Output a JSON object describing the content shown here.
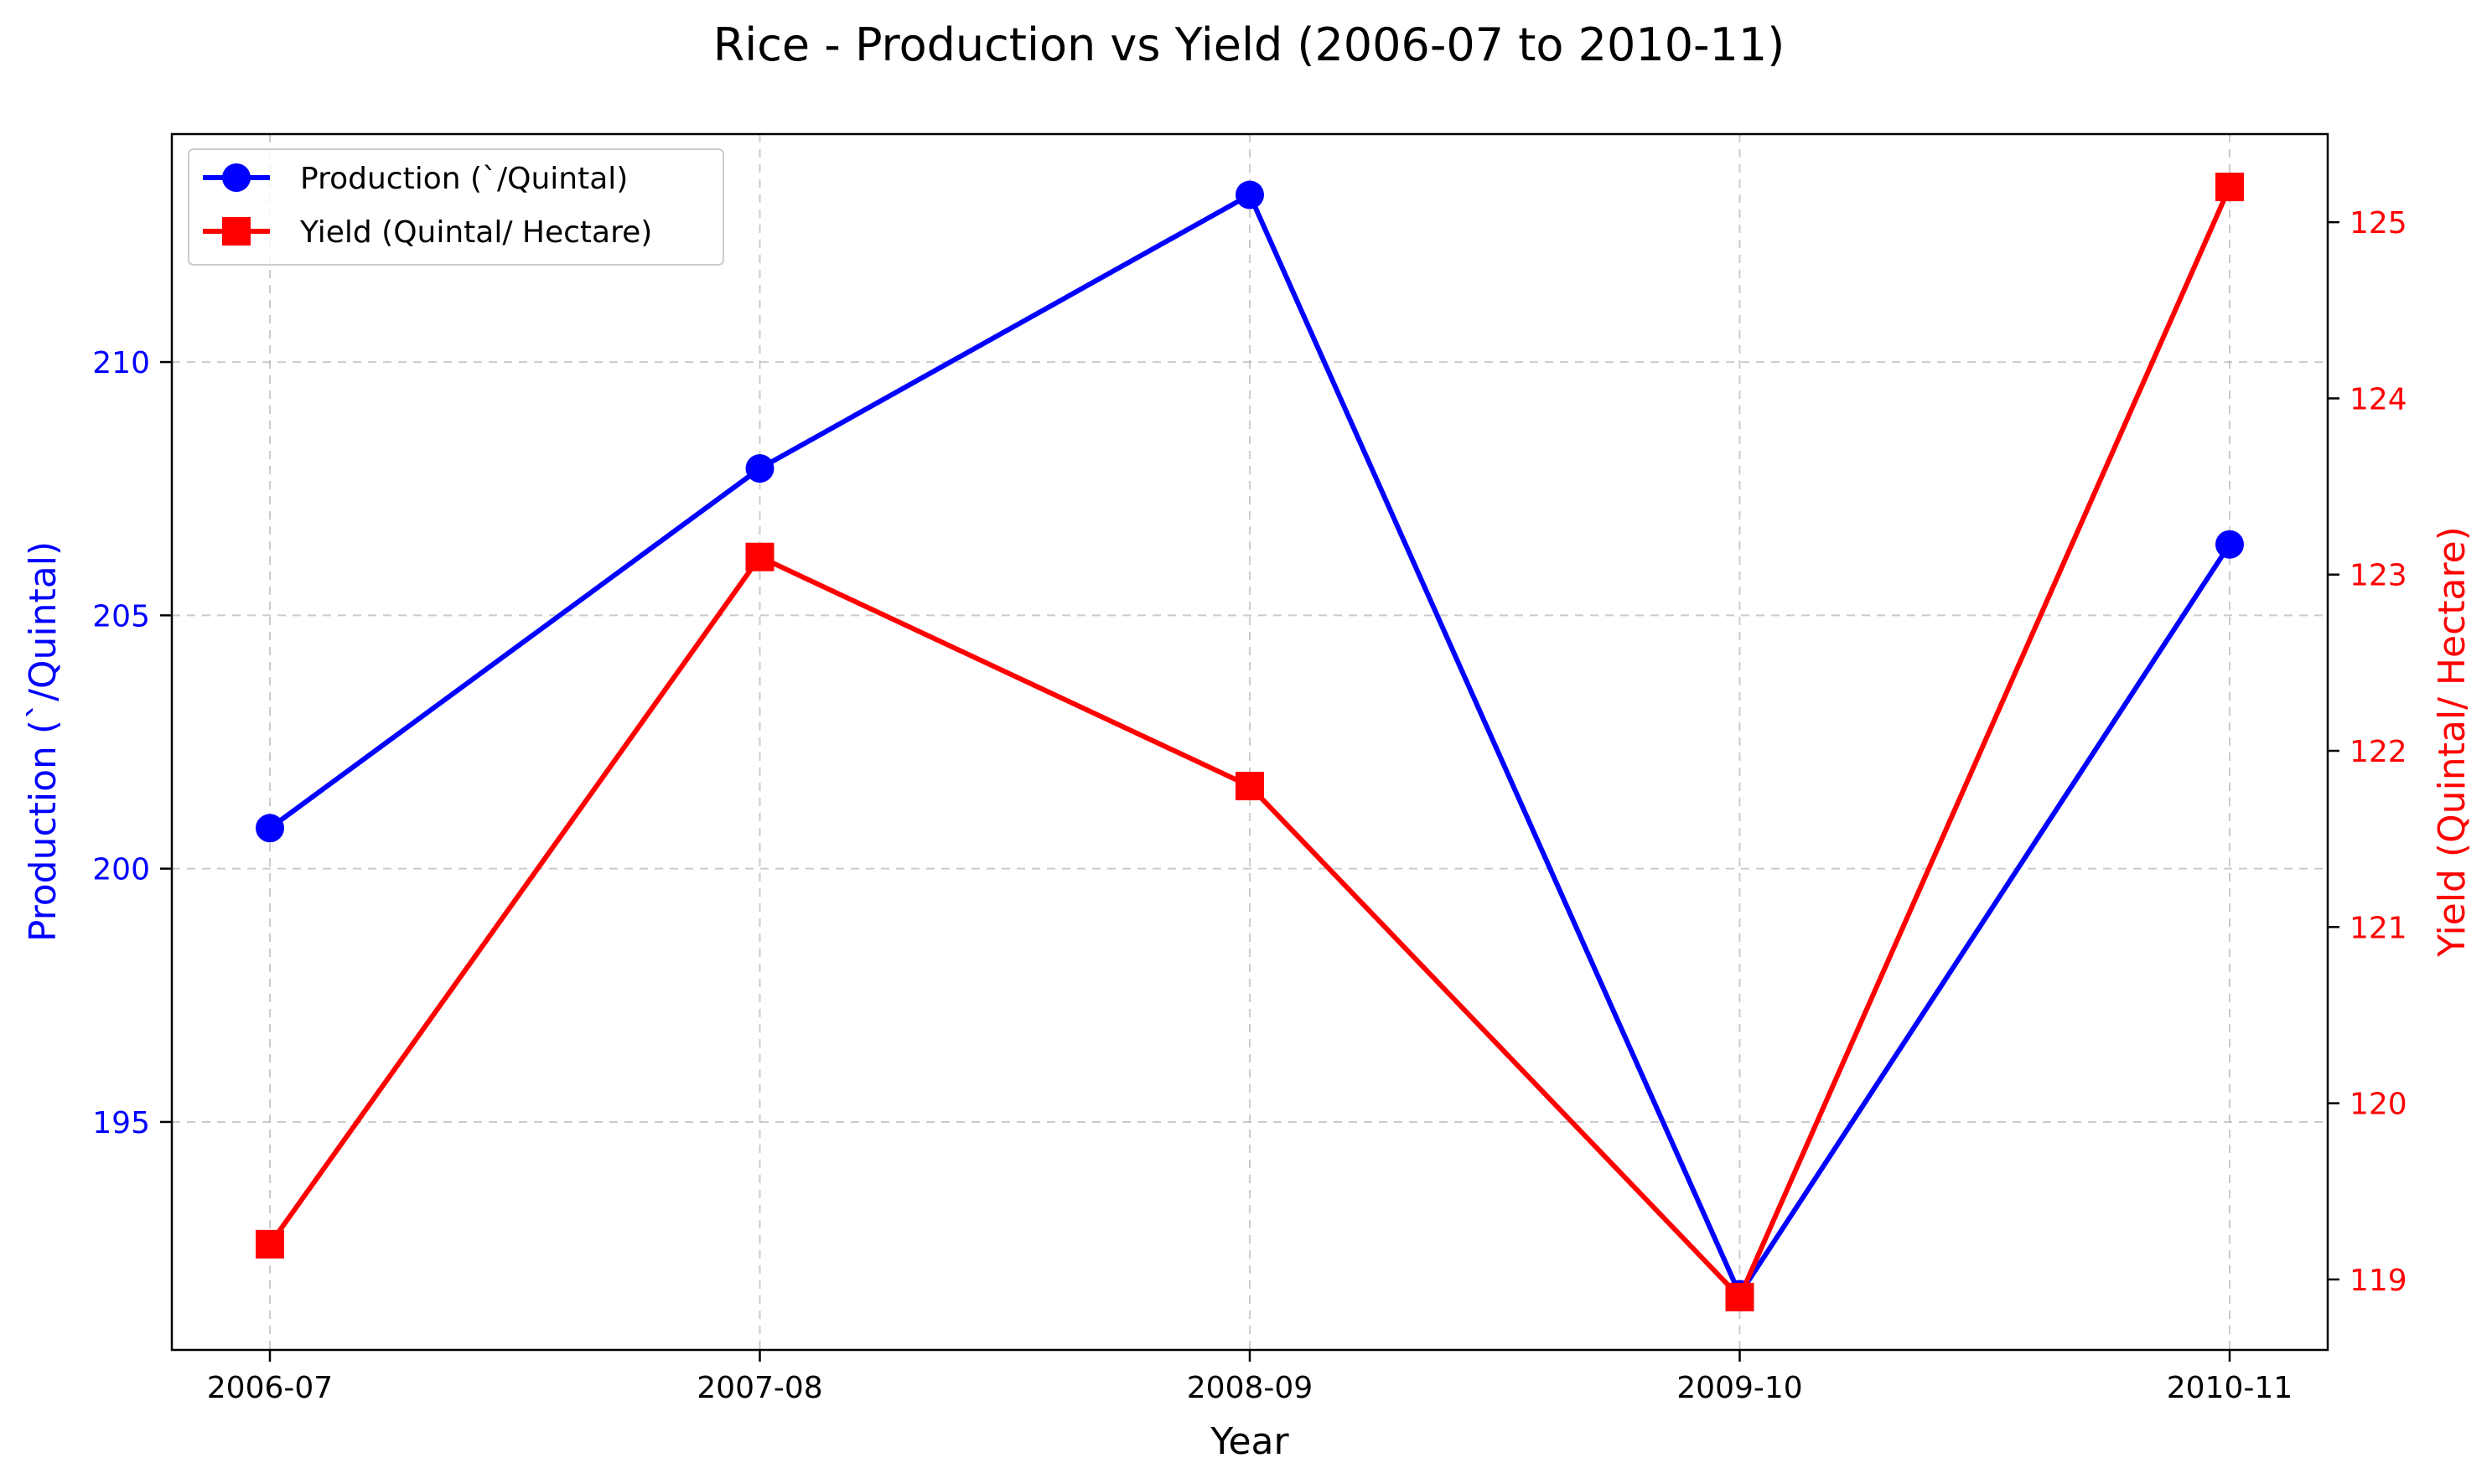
{
  "chart_data": {
    "type": "line",
    "title": "Rice - Production vs Yield (2006-07 to 2010-11)",
    "xlabel": "Year",
    "ylabel_left": "Production (`/Quintal)",
    "ylabel_right": "Yield (Quintal/ Hectare)",
    "categories": [
      "2006-07",
      "2007-08",
      "2008-09",
      "2009-10",
      "2010-11"
    ],
    "series": [
      {
        "name": "Production (`/Quintal)",
        "axis": "left",
        "color": "#0000ff",
        "marker": "circle",
        "values": [
          200.8,
          207.9,
          213.3,
          191.6,
          206.4
        ]
      },
      {
        "name": "Yield (Quintal/ Hectare)",
        "axis": "right",
        "color": "#ff0000",
        "marker": "square",
        "values": [
          119.2,
          123.1,
          121.8,
          118.9,
          125.2
        ]
      }
    ],
    "ylim_left": [
      190.5,
      214.5
    ],
    "yticks_left": [
      195,
      200,
      205,
      210
    ],
    "ylim_right": [
      118.6,
      125.5
    ],
    "yticks_right": [
      119,
      120,
      121,
      122,
      123,
      124,
      125
    ],
    "grid": true,
    "legend_position": "top-left"
  }
}
